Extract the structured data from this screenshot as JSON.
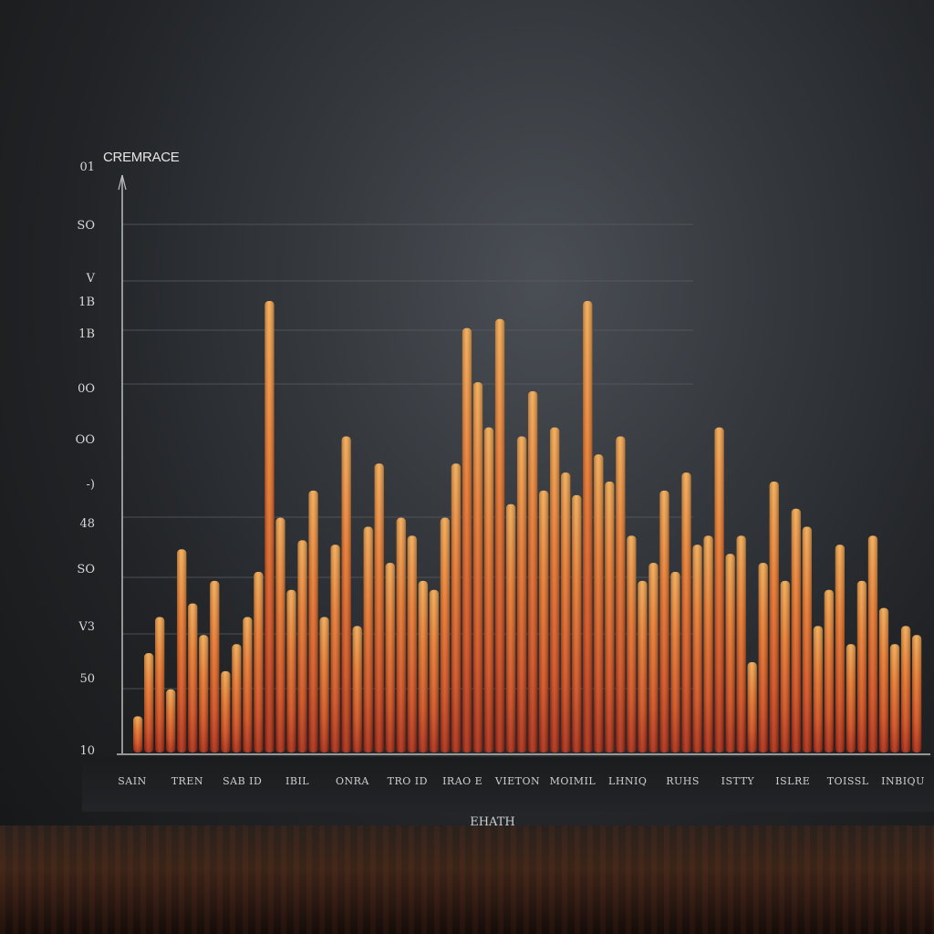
{
  "chart_data": {
    "type": "bar",
    "title": "CREMRACE",
    "xlabel": "EHATH",
    "y_tick_labels": [
      "10",
      "50",
      "V3",
      "SO",
      "48",
      "-)",
      "OO",
      "0O",
      "1B",
      "1B",
      "V",
      "SO",
      "01"
    ],
    "x_tick_labels": [
      "SAIN",
      "TREN",
      "SAB ID",
      "IBIL",
      "ONRA",
      "TRO ID",
      "IRAO E",
      "VIETON",
      "MOIMIL",
      "LHNIQ",
      "RUHS",
      "ISTTY",
      "ISLRE",
      "TOISSL",
      "INBIQU"
    ],
    "grid": true,
    "colors": {
      "bar_top": "#f0a050",
      "bar_mid": "#e0642a",
      "bar_base": "#b42814",
      "axis": "#bdbdbd",
      "grid": "#5a5e63"
    },
    "values": [
      8,
      22,
      30,
      14,
      45,
      33,
      26,
      38,
      18,
      24,
      30,
      40,
      100,
      52,
      36,
      47,
      58,
      30,
      46,
      70,
      28,
      50,
      64,
      42,
      52,
      48,
      38,
      36,
      52,
      64,
      94,
      82,
      72,
      96,
      55,
      70,
      80,
      58,
      72,
      62,
      57,
      100,
      66,
      60,
      70,
      48,
      38,
      42,
      58,
      40,
      62,
      46,
      48,
      72,
      44,
      48,
      20,
      42,
      60,
      38,
      54,
      50,
      28,
      36,
      46,
      24,
      38,
      48,
      32,
      24,
      28,
      26
    ]
  }
}
